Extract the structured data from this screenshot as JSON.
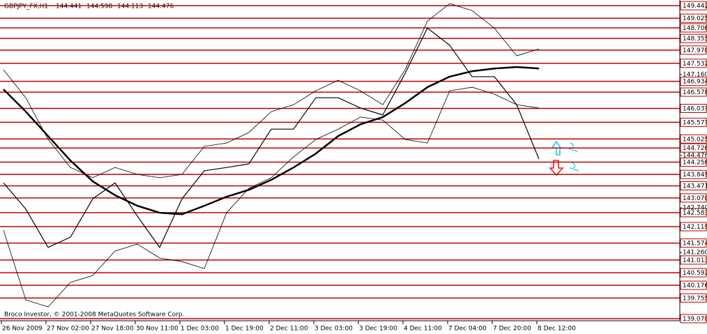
{
  "chart_data": {
    "type": "line",
    "title": "GBPJPY_FX,H1",
    "ohlc": [
      144.441,
      144.598,
      144.113,
      144.476
    ],
    "footer": "Broco Investor, © 2001-2008 MetaQuotes Software Corp.",
    "categories": [
      "26 Nov 2009",
      null,
      "27 Nov 02:00",
      null,
      "27 Nov 18:00",
      null,
      "30 Nov 11:00",
      null,
      "1 Dec 03:00",
      null,
      "1 Dec 19:00",
      null,
      "2 Dec 11:00",
      null,
      "3 Dec 03:00",
      null,
      "3 Dec 19:00",
      null,
      "4 Dec 11:00",
      null,
      "7 Dec 04:00",
      null,
      "7 Dec 20:00",
      null,
      "8 Dec 12:00"
    ],
    "series": [
      {
        "color": "#000000",
        "width": 1.2,
        "values": [
          143.57,
          142.7,
          141.43,
          141.77,
          143.04,
          143.57,
          142.47,
          141.43,
          143.04,
          143.97,
          144.08,
          144.2,
          145.35,
          145.35,
          146.39,
          146.39,
          146.05,
          145.82,
          147.2,
          148.7,
          148.13,
          147.09,
          147.09,
          146.16,
          144.36
        ]
      },
      {
        "color": "#000000",
        "width": 2.5,
        "values": [
          146.67,
          145.93,
          145.12,
          144.31,
          143.62,
          143.16,
          142.81,
          142.58,
          142.53,
          142.81,
          143.11,
          143.34,
          143.67,
          144.08,
          144.54,
          145.12,
          145.51,
          145.75,
          146.21,
          146.74,
          147.09,
          147.27,
          147.36,
          147.41,
          147.36
        ]
      },
      {
        "color": "#000000",
        "width": 0.8,
        "values": [
          147.32,
          146.39,
          145.01,
          144.08,
          143.74,
          144.08,
          143.85,
          143.74,
          143.85,
          144.78,
          144.89,
          145.24,
          145.93,
          146.16,
          146.62,
          146.97,
          146.62,
          146.16,
          147.32,
          148.93,
          149.51,
          149.28,
          148.7,
          147.78,
          148.01
        ]
      },
      {
        "color": "#000000",
        "width": 0.8,
        "values": [
          142.0,
          139.69,
          139.46,
          140.27,
          140.5,
          141.31,
          141.54,
          141.08,
          140.96,
          140.73,
          142.58,
          143.39,
          143.74,
          144.43,
          145.01,
          145.35,
          145.75,
          145.65,
          145.01,
          144.89,
          146.62,
          146.74,
          146.51,
          146.16,
          146.05
        ]
      }
    ],
    "levels": [
      149.442,
      149.025,
      148.706,
      148.355,
      {
        "value": 147.97,
        "label": "147.970"
      },
      147.532,
      146.934,
      146.578,
      146.037,
      145.577,
      145.025,
      144.726,
      144.256,
      143.849,
      143.471,
      {
        "value": 143.07,
        "label": "143.070"
      },
      142.583,
      142.119,
      141.574,
      141.013,
      140.592,
      140.176,
      139.755,
      {
        "value": 139.07,
        "label": "139.070"
      }
    ],
    "level_color": "#c00000",
    "ylim": [
      139.0,
      149.63
    ],
    "yticks": [
      {
        "value": 147.16,
        "label": "147.160"
      },
      144.476,
      {
        "value": 142.74,
        "label": "142.740"
      },
      {
        "value": 141.26,
        "label": "141.260"
      }
    ]
  }
}
